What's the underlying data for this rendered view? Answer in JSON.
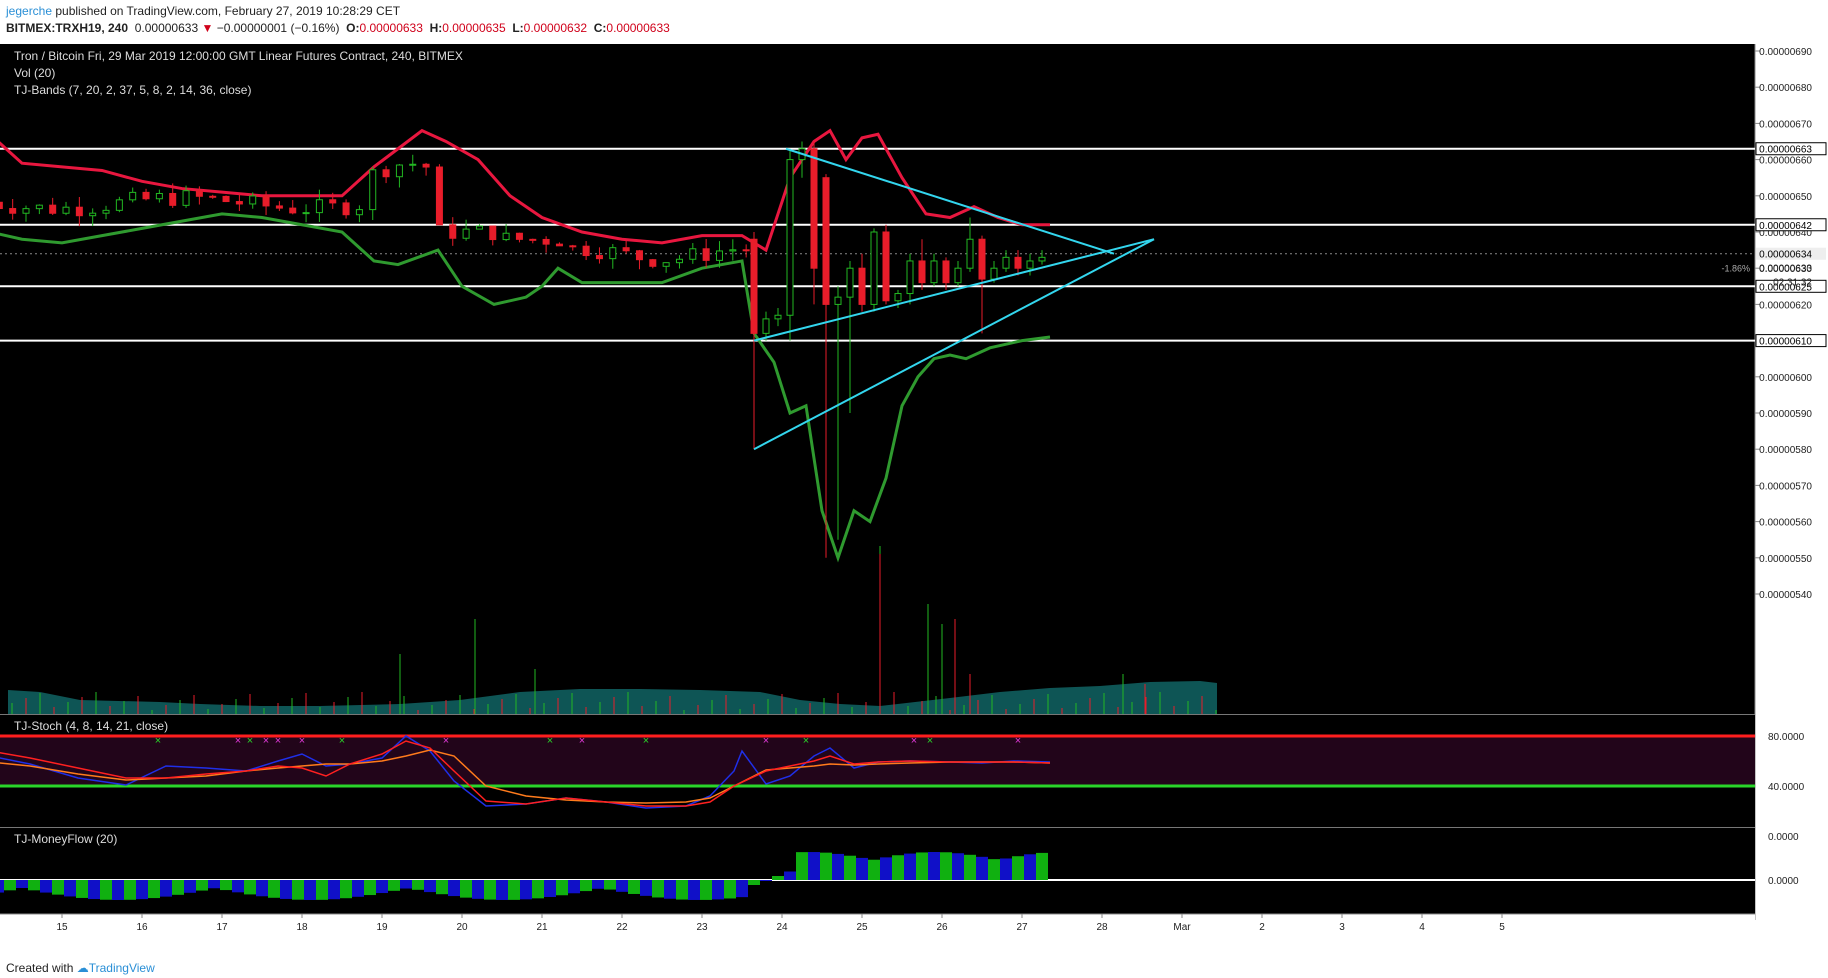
{
  "header": {
    "author": "jegerche",
    "published": " published on TradingView.com, February 27, 2019 10:28:29 CET",
    "symbol": "BITMEX:TRXH19, 240",
    "last": "0.00000633",
    "change": "−0.00000001 (−0.16%)",
    "o_label": "O:",
    "o_value": "0.00000633",
    "h_label": "H:",
    "h_value": "0.00000635",
    "l_label": "L:",
    "l_value": "0.00000632",
    "c_label": "C:",
    "c_value": "0.00000633"
  },
  "footer": {
    "created_with": "Created with",
    "brand": "TradingView"
  },
  "colors": {
    "background": "#000000",
    "up": "#22b822",
    "down": "#e81d2a",
    "upper_band": "#e8173f",
    "lower_band": "#2f9a2f",
    "trendline": "#33d6ee",
    "level": "#ffffff",
    "stoch_fast": "#1f2fe8",
    "stoch_slow": "#ff7b1c",
    "stoch_red": "#ff2020",
    "mf_pos": "#10b010",
    "mf_neg": "#1010c8"
  },
  "chart_data": [
    {
      "type": "candlestick",
      "title": "Tron / Bitcoin Fri, 29 Mar 2019 12:00:00 GMT Linear Futures Contract, 240, BITMEX",
      "subtitles": [
        "Vol (20)",
        "TJ-Bands (7, 20, 2, 37, 5, 8, 2, 14, 36, close)"
      ],
      "ylim": [
        5.35e-06,
        6.95e-06
      ],
      "yticks": [
        "0.00000690",
        "0.00000680",
        "0.00000670",
        "0.00000660",
        "0.00000650",
        "0.00000640",
        "0.00000630",
        "0.00000620",
        "0.00000600",
        "0.00000590",
        "0.00000580",
        "0.00000570",
        "0.00000560",
        "0.00000550",
        "0.00000540"
      ],
      "x_tick_labels": [
        "15",
        "16",
        "17",
        "18",
        "19",
        "20",
        "21",
        "22",
        "23",
        "24",
        "25",
        "26",
        "27",
        "28",
        "Mar",
        "2",
        "3",
        "4",
        "5"
      ],
      "horizontal_levels": [
        {
          "value": 6.63e-06,
          "label": "0.00000663"
        },
        {
          "value": 6.42e-06,
          "label": "0.00000642"
        },
        {
          "value": 6.25e-06,
          "label": "0.00000625"
        },
        {
          "value": 6.1e-06,
          "label": "0.00000610"
        }
      ],
      "current_price": {
        "value": 6.34e-06,
        "label": "0.00000634"
      },
      "price_labels": [
        "0.00000633",
        "-1.86%",
        "02:31:32"
      ],
      "trendlines": [
        {
          "from": [
            24.05,
            6.63e-06
          ],
          "to": [
            28.15,
            6.34e-06
          ]
        },
        {
          "from": [
            23.65,
            6.1e-06
          ],
          "to": [
            28.65,
            6.38e-06
          ]
        },
        {
          "from": [
            23.65,
            5.8e-06
          ],
          "to": [
            28.65,
            6.38e-06
          ]
        }
      ],
      "upper_band": [
        [
          14.1,
          6.67e-06
        ],
        [
          14.5,
          6.59e-06
        ],
        [
          15.0,
          6.58e-06
        ],
        [
          15.5,
          6.57e-06
        ],
        [
          16.0,
          6.54e-06
        ],
        [
          16.5,
          6.52e-06
        ],
        [
          17.0,
          6.51e-06
        ],
        [
          17.5,
          6.5e-06
        ],
        [
          18.0,
          6.5e-06
        ],
        [
          18.5,
          6.5e-06
        ],
        [
          18.9,
          6.58e-06
        ],
        [
          19.2,
          6.63e-06
        ],
        [
          19.5,
          6.68e-06
        ],
        [
          19.8,
          6.65e-06
        ],
        [
          20.2,
          6.6e-06
        ],
        [
          20.6,
          6.5e-06
        ],
        [
          21.0,
          6.44e-06
        ],
        [
          21.5,
          6.4e-06
        ],
        [
          22.0,
          6.38e-06
        ],
        [
          22.5,
          6.37e-06
        ],
        [
          23.0,
          6.39e-06
        ],
        [
          23.5,
          6.39e-06
        ],
        [
          23.8,
          6.35e-06
        ],
        [
          24.1,
          6.55e-06
        ],
        [
          24.4,
          6.65e-06
        ],
        [
          24.6,
          6.68e-06
        ],
        [
          24.8,
          6.6e-06
        ],
        [
          25.0,
          6.66e-06
        ],
        [
          25.2,
          6.67e-06
        ],
        [
          25.5,
          6.55e-06
        ],
        [
          25.8,
          6.45e-06
        ],
        [
          26.1,
          6.44e-06
        ],
        [
          26.4,
          6.47e-06
        ],
        [
          26.7,
          6.44e-06
        ],
        [
          27.0,
          6.42e-06
        ],
        [
          27.35,
          6.42e-06
        ]
      ],
      "lower_band": [
        [
          14.1,
          6.4e-06
        ],
        [
          14.5,
          6.38e-06
        ],
        [
          15.0,
          6.37e-06
        ],
        [
          15.5,
          6.39e-06
        ],
        [
          16.0,
          6.41e-06
        ],
        [
          16.5,
          6.43e-06
        ],
        [
          17.0,
          6.45e-06
        ],
        [
          17.5,
          6.44e-06
        ],
        [
          18.0,
          6.42e-06
        ],
        [
          18.5,
          6.4e-06
        ],
        [
          18.9,
          6.32e-06
        ],
        [
          19.2,
          6.31e-06
        ],
        [
          19.7,
          6.35e-06
        ],
        [
          20.0,
          6.25e-06
        ],
        [
          20.4,
          6.2e-06
        ],
        [
          20.8,
          6.22e-06
        ],
        [
          21.0,
          6.25e-06
        ],
        [
          21.2,
          6.3e-06
        ],
        [
          21.5,
          6.26e-06
        ],
        [
          22.0,
          6.26e-06
        ],
        [
          22.5,
          6.26e-06
        ],
        [
          23.0,
          6.3e-06
        ],
        [
          23.5,
          6.32e-06
        ],
        [
          23.65,
          6.12e-06
        ],
        [
          23.9,
          6.04e-06
        ],
        [
          24.1,
          5.9e-06
        ],
        [
          24.3,
          5.92e-06
        ],
        [
          24.5,
          5.63e-06
        ],
        [
          24.7,
          5.5e-06
        ],
        [
          24.9,
          5.63e-06
        ],
        [
          25.1,
          5.6e-06
        ],
        [
          25.3,
          5.72e-06
        ],
        [
          25.5,
          5.92e-06
        ],
        [
          25.7,
          6e-06
        ],
        [
          25.9,
          6.05e-06
        ],
        [
          26.1,
          6.06e-06
        ],
        [
          26.3,
          6.05e-06
        ],
        [
          26.6,
          6.08e-06
        ],
        [
          27.0,
          6.1e-06
        ],
        [
          27.35,
          6.11e-06
        ]
      ]
    },
    {
      "type": "line",
      "title": "TJ-Stoch (4, 8, 14, 21, close)",
      "ylim": [
        0,
        100
      ],
      "yticks": [
        "80.0000",
        "40.0000",
        "0.0000"
      ],
      "levels": [
        90,
        40
      ],
      "series": [
        {
          "color": "blue",
          "x": [
            14.1,
            14.6,
            15.2,
            15.8,
            16.3,
            16.8,
            17.3,
            17.7,
            18.0,
            18.3,
            18.6,
            19.0,
            19.3,
            19.6,
            19.9,
            20.3,
            20.8,
            21.3,
            21.8,
            22.3,
            22.8,
            23.1,
            23.4,
            23.5,
            23.8,
            24.1,
            24.4,
            24.6,
            24.9,
            25.2,
            25.6,
            26.1,
            26.5,
            26.9,
            27.35
          ],
          "values": [
            70,
            62,
            48,
            41,
            60,
            58,
            55,
            65,
            72,
            60,
            62,
            68,
            90,
            75,
            45,
            20,
            22,
            28,
            24,
            18,
            20,
            30,
            55,
            75,
            42,
            50,
            70,
            78,
            58,
            64,
            65,
            64,
            63,
            65,
            64
          ]
        },
        {
          "color": "orange",
          "x": [
            14.1,
            14.6,
            15.2,
            15.8,
            16.3,
            16.8,
            17.3,
            17.7,
            18.0,
            18.3,
            18.6,
            19.0,
            19.3,
            19.6,
            19.9,
            20.3,
            20.8,
            21.3,
            21.8,
            22.3,
            22.8,
            23.1,
            23.4,
            23.8,
            24.1,
            24.4,
            24.6,
            24.9,
            25.2,
            25.6,
            26.1,
            26.5,
            26.9,
            27.35
          ],
          "values": [
            64,
            60,
            52,
            46,
            48,
            50,
            55,
            58,
            60,
            62,
            62,
            65,
            70,
            76,
            70,
            40,
            30,
            26,
            24,
            23,
            24,
            28,
            40,
            56,
            58,
            60,
            62,
            61,
            62,
            63,
            64,
            64,
            64,
            63
          ]
        },
        {
          "color": "red",
          "x": [
            14.1,
            14.6,
            15.2,
            15.8,
            16.3,
            16.8,
            17.3,
            17.7,
            18.0,
            18.3,
            18.6,
            19.0,
            19.3,
            19.6,
            19.9,
            20.3,
            20.8,
            21.3,
            21.8,
            22.3,
            22.8,
            23.1,
            23.4,
            23.8,
            24.1,
            24.4,
            24.6,
            24.9,
            25.2,
            25.6,
            26.1,
            26.5,
            26.9,
            27.35
          ],
          "values": [
            75,
            68,
            58,
            48,
            48,
            52,
            55,
            60,
            58,
            50,
            62,
            72,
            85,
            78,
            55,
            25,
            22,
            28,
            24,
            20,
            20,
            24,
            40,
            55,
            60,
            65,
            70,
            62,
            64,
            65,
            64,
            64,
            64,
            63
          ]
        }
      ]
    },
    {
      "type": "bar",
      "title": "TJ-MoneyFlow (20)",
      "yticks": [
        "0.0000"
      ],
      "note": "positive/negative money flow histogram"
    }
  ]
}
